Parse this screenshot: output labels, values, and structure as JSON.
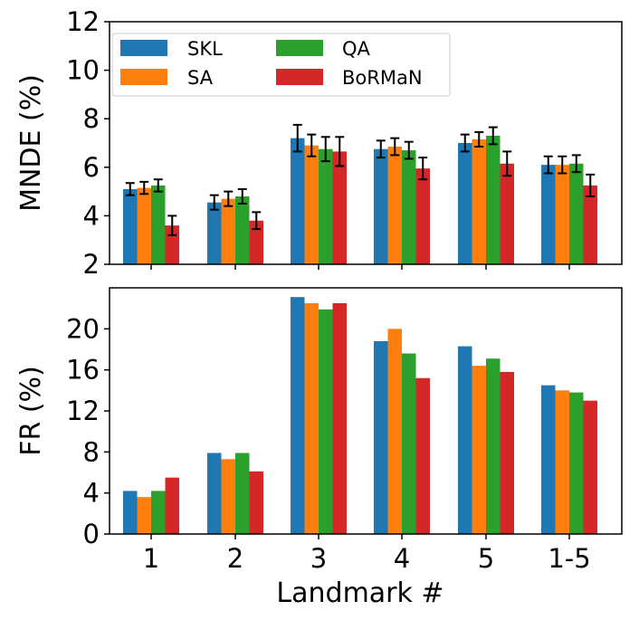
{
  "chart_data": [
    {
      "type": "bar",
      "panel": "top",
      "categories": [
        "1",
        "2",
        "3",
        "4",
        "5",
        "1-5"
      ],
      "series": [
        {
          "name": "SKL",
          "color": "#1f77b4",
          "values": [
            5.1,
            4.55,
            7.2,
            6.75,
            7.0,
            6.1
          ],
          "errors": [
            0.25,
            0.3,
            0.55,
            0.35,
            0.35,
            0.35
          ]
        },
        {
          "name": "SA",
          "color": "#ff7f0e",
          "values": [
            5.15,
            4.7,
            6.9,
            6.85,
            7.15,
            6.1
          ],
          "errors": [
            0.25,
            0.3,
            0.45,
            0.35,
            0.3,
            0.35
          ]
        },
        {
          "name": "QA",
          "color": "#2ca02c",
          "values": [
            5.25,
            4.8,
            6.75,
            6.7,
            7.3,
            6.15
          ],
          "errors": [
            0.25,
            0.3,
            0.5,
            0.35,
            0.35,
            0.35
          ]
        },
        {
          "name": "BoRMaN",
          "color": "#d62728",
          "values": [
            3.6,
            3.8,
            6.65,
            5.95,
            6.15,
            5.25
          ],
          "errors": [
            0.4,
            0.35,
            0.6,
            0.45,
            0.5,
            0.45
          ]
        }
      ],
      "ylabel": "MNDE (%)",
      "ylim": [
        2,
        12
      ],
      "yticks": [
        "2",
        "4",
        "6",
        "8",
        "10",
        "12"
      ],
      "legend_position": "upper-left"
    },
    {
      "type": "bar",
      "panel": "bottom",
      "categories": [
        "1",
        "2",
        "3",
        "4",
        "5",
        "1-5"
      ],
      "series": [
        {
          "name": "SKL",
          "color": "#1f77b4",
          "values": [
            4.2,
            7.9,
            23.1,
            18.8,
            18.3,
            14.5
          ]
        },
        {
          "name": "SA",
          "color": "#ff7f0e",
          "values": [
            3.6,
            7.3,
            22.5,
            20.0,
            16.4,
            14.0
          ]
        },
        {
          "name": "QA",
          "color": "#2ca02c",
          "values": [
            4.2,
            7.9,
            21.9,
            17.6,
            17.1,
            13.8
          ]
        },
        {
          "name": "BoRMaN",
          "color": "#d62728",
          "values": [
            5.5,
            6.1,
            22.5,
            15.2,
            15.8,
            13.0
          ]
        }
      ],
      "xlabel": "Landmark #",
      "ylabel": "FR (%)",
      "ylim": [
        0,
        24
      ],
      "yticks": [
        "0",
        "4",
        "8",
        "12",
        "16",
        "20"
      ]
    }
  ]
}
